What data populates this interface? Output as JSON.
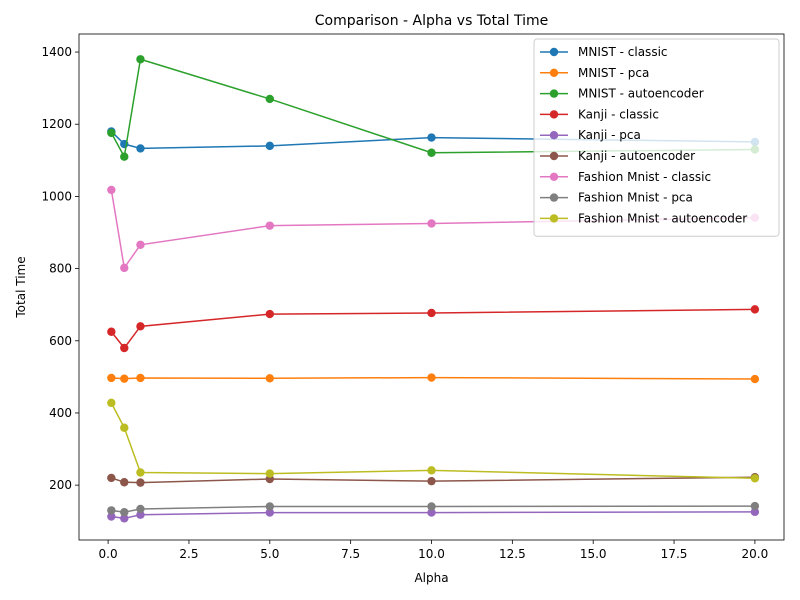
{
  "chart_data": {
    "type": "line",
    "title": "Comparison - Alpha vs Total Time",
    "xlabel": "Alpha",
    "ylabel": "Total Time",
    "xlim": [
      -0.9,
      20.9
    ],
    "ylim": [
      48,
      1450
    ],
    "xticks": [
      0.0,
      2.5,
      5.0,
      7.5,
      10.0,
      12.5,
      15.0,
      17.5,
      20.0
    ],
    "xtick_labels": [
      "0.0",
      "2.5",
      "5.0",
      "7.5",
      "10.0",
      "12.5",
      "15.0",
      "17.5",
      "20.0"
    ],
    "yticks": [
      200,
      400,
      600,
      800,
      1000,
      1200,
      1400
    ],
    "ytick_labels": [
      "200",
      "400",
      "600",
      "800",
      "1000",
      "1200",
      "1400"
    ],
    "grid": false,
    "legend_position": "top-right",
    "x": [
      0.1,
      0.5,
      1,
      5,
      10,
      20
    ],
    "series": [
      {
        "name": "MNIST - classic",
        "color": "#1f77b4",
        "values": [
          1180,
          1145,
          1133,
          1140,
          1163,
          1151
        ]
      },
      {
        "name": "MNIST - pca",
        "color": "#ff7f0e",
        "values": [
          497,
          495,
          497,
          496,
          498,
          494
        ]
      },
      {
        "name": "MNIST - autoencoder",
        "color": "#2ca02c",
        "values": [
          1176,
          1110,
          1380,
          1270,
          1121,
          1130
        ]
      },
      {
        "name": "Kanji - classic",
        "color": "#d62728",
        "values": [
          625,
          580,
          640,
          674,
          677,
          687
        ]
      },
      {
        "name": "Kanji - pca",
        "color": "#9467bd",
        "values": [
          113,
          108,
          118,
          124,
          124,
          126
        ]
      },
      {
        "name": "Kanji - autoencoder",
        "color": "#8c564b",
        "values": [
          220,
          208,
          207,
          217,
          211,
          222
        ]
      },
      {
        "name": "Fashion Mnist - classic",
        "color": "#e377c2",
        "values": [
          1018,
          802,
          866,
          919,
          925,
          941
        ]
      },
      {
        "name": "Fashion Mnist - pca",
        "color": "#7f7f7f",
        "values": [
          130,
          125,
          134,
          141,
          141,
          142
        ]
      },
      {
        "name": "Fashion Mnist - autoencoder",
        "color": "#bcbd22",
        "values": [
          428,
          359,
          235,
          232,
          241,
          219
        ]
      }
    ]
  }
}
